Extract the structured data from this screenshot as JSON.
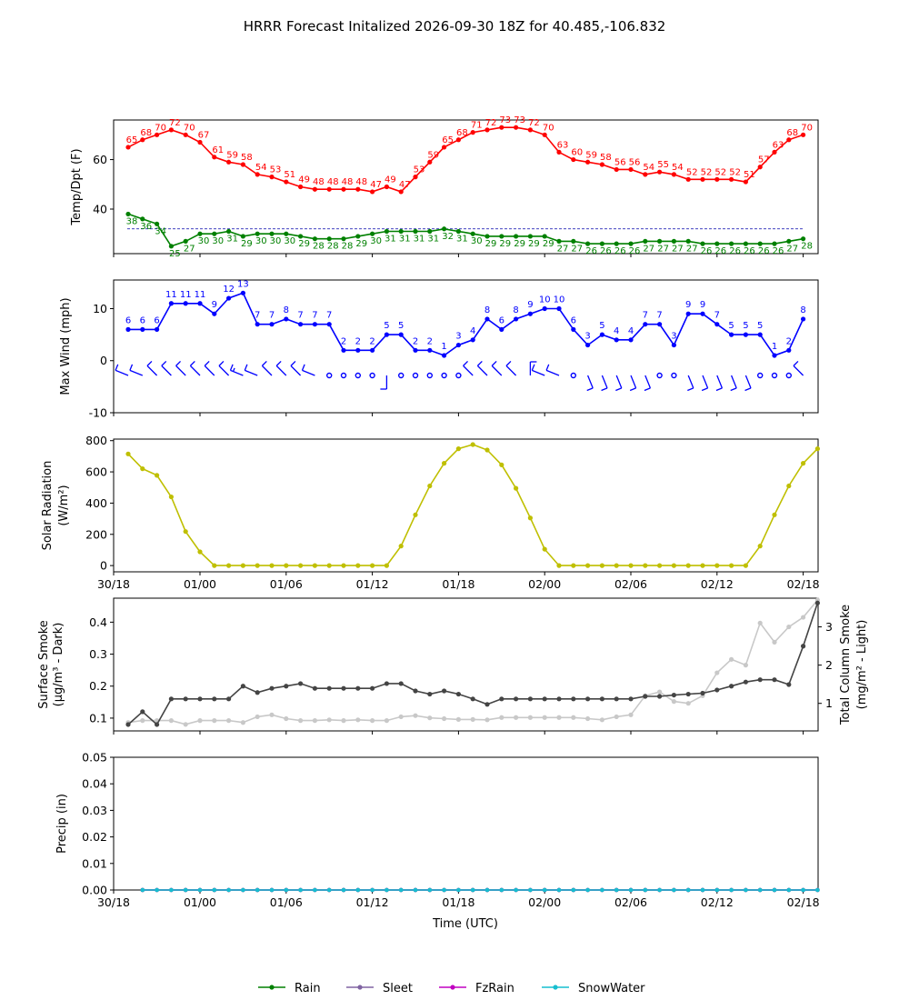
{
  "title": "HRRR Forecast Initalized 2026-09-30 18Z for 40.485,-106.832",
  "x_tick_labels": [
    "30/18",
    "01/00",
    "01/06",
    "01/12",
    "01/18",
    "02/00",
    "02/06",
    "02/12",
    "02/18"
  ],
  "x_axis_label": "Time (UTC)",
  "chart_data": [
    {
      "type": "line",
      "panel": "temperature",
      "ylabel": "Temp/Dpt (F)",
      "ylim": [
        22,
        76
      ],
      "yticks": [
        40,
        60
      ],
      "x_start": "30/18",
      "x_step_hours": 1,
      "reference_line": 32,
      "series": [
        {
          "role": "temperature",
          "color": "#ff0000",
          "values": [
            65,
            68,
            70,
            72,
            70,
            67,
            61,
            59,
            58,
            54,
            53,
            51,
            49,
            48,
            48,
            48,
            48,
            47,
            49,
            47,
            53,
            59,
            65,
            68,
            71,
            72,
            73,
            73,
            72,
            70,
            63,
            60,
            59,
            58,
            56,
            56,
            54,
            55,
            54,
            52,
            52,
            52,
            52,
            51,
            57,
            63,
            68,
            70
          ]
        },
        {
          "role": "dewpoint",
          "color": "#008000",
          "values": [
            38,
            36,
            34,
            25,
            27,
            30,
            30,
            31,
            29,
            30,
            30,
            30,
            29,
            28,
            28,
            28,
            29,
            30,
            31,
            31,
            31,
            31,
            32,
            31,
            30,
            29,
            29,
            29,
            29,
            29,
            27,
            27,
            26,
            26,
            26,
            26,
            27,
            27,
            27,
            27,
            26,
            26,
            26,
            26,
            26,
            26,
            27,
            28
          ]
        }
      ]
    },
    {
      "type": "line",
      "panel": "wind",
      "ylabel": "Max Wind (mph)",
      "ylim": [
        -10,
        15.5
      ],
      "yticks": [
        -10,
        0,
        10
      ],
      "color": "#0000ff",
      "values": [
        6,
        6,
        6,
        11,
        11,
        11,
        9,
        12,
        13,
        7,
        7,
        8,
        7,
        7,
        7,
        2,
        2,
        2,
        5,
        5,
        2,
        2,
        1,
        3,
        4,
        8,
        6,
        8,
        9,
        10,
        10,
        6,
        3,
        5,
        4,
        4,
        7,
        7,
        3,
        9,
        9,
        7,
        5,
        5,
        5,
        1,
        2,
        8
      ],
      "barb_directions": [
        "WNW",
        "WNW",
        "NW",
        "NW",
        "NW",
        "NW",
        "NW",
        "NW",
        "WNW",
        "WNW",
        "NW",
        "NW",
        "NW",
        "WNW",
        "calm",
        "calm",
        "calm",
        "calm",
        "S",
        "calm",
        "calm",
        "calm",
        "calm",
        "calm",
        "NW",
        "NW",
        "NW",
        "NW",
        "N",
        "WNW",
        "WNW",
        "calm",
        "SSE",
        "SSE",
        "SSE",
        "SSE",
        "SSE",
        "calm",
        "calm",
        "SSE",
        "SSE",
        "SSE",
        "SSE",
        "SSE",
        "calm",
        "calm",
        "calm",
        "NW"
      ]
    },
    {
      "type": "line",
      "panel": "solar",
      "ylabel": "Solar Radiation\n(W/m²)",
      "ylim": [
        -40,
        810
      ],
      "yticks": [
        0,
        200,
        400,
        600,
        800
      ],
      "color": "#bfbf00",
      "values": [
        715,
        620,
        578,
        440,
        218,
        88,
        0,
        0,
        0,
        0,
        0,
        0,
        0,
        0,
        0,
        0,
        0,
        0,
        0,
        125,
        325,
        510,
        655,
        748,
        775,
        740,
        645,
        495,
        305,
        105,
        0,
        0,
        0,
        0,
        0,
        0,
        0,
        0,
        0,
        0,
        0,
        0,
        0,
        0,
        125,
        325,
        510,
        655,
        748
      ]
    },
    {
      "type": "line",
      "panel": "smoke",
      "ylabel": "Surface Smoke\n(µg/m³ - Dark)",
      "ylabel_right": "Total Column Smoke\n(mg/m² - Light)",
      "ylim": [
        0.06,
        0.475
      ],
      "yticks": [
        0.1,
        0.2,
        0.3,
        0.4
      ],
      "ylim_right": [
        0.28,
        3.75
      ],
      "yticks_right": [
        1,
        2,
        3
      ],
      "series": [
        {
          "role": "surface",
          "color": "#444444",
          "values": [
            0.08,
            0.12,
            0.08,
            0.16,
            0.16,
            0.16,
            0.16,
            0.16,
            0.2,
            0.18,
            0.193,
            0.2,
            0.208,
            0.193,
            0.193,
            0.193,
            0.193,
            0.193,
            0.208,
            0.208,
            0.185,
            0.175,
            0.185,
            0.175,
            0.16,
            0.143,
            0.16,
            0.16,
            0.16,
            0.16,
            0.16,
            0.16,
            0.16,
            0.16,
            0.16,
            0.16,
            0.168,
            0.168,
            0.172,
            0.175,
            0.178,
            0.188,
            0.2,
            0.213,
            0.22,
            0.22,
            0.205,
            0.325,
            0.46
          ]
        },
        {
          "role": "column",
          "color": "#c8c8c8",
          "values": [
            0.5,
            0.55,
            0.55,
            0.55,
            0.45,
            0.55,
            0.55,
            0.55,
            0.5,
            0.65,
            0.7,
            0.6,
            0.55,
            0.55,
            0.57,
            0.55,
            0.57,
            0.55,
            0.55,
            0.65,
            0.68,
            0.62,
            0.6,
            0.58,
            0.58,
            0.57,
            0.63,
            0.63,
            0.63,
            0.63,
            0.63,
            0.63,
            0.6,
            0.57,
            0.65,
            0.7,
            1.2,
            1.3,
            1.05,
            1.0,
            1.2,
            1.8,
            2.15,
            2.0,
            3.1,
            2.6,
            3.0,
            3.25,
            3.7
          ]
        }
      ]
    },
    {
      "type": "line",
      "panel": "precip",
      "ylabel": "Precip (in)",
      "ylim": [
        0,
        0.05
      ],
      "yticks": [
        0.0,
        0.01,
        0.02,
        0.03,
        0.04,
        0.05
      ],
      "series": [
        {
          "name": "Rain",
          "color": "#008000",
          "values": [
            0,
            0,
            0,
            0,
            0,
            0,
            0,
            0,
            0,
            0,
            0,
            0,
            0,
            0,
            0,
            0,
            0,
            0,
            0,
            0,
            0,
            0,
            0,
            0,
            0,
            0,
            0,
            0,
            0,
            0,
            0,
            0,
            0,
            0,
            0,
            0,
            0,
            0,
            0,
            0,
            0,
            0,
            0,
            0,
            0,
            0,
            0,
            0
          ]
        },
        {
          "name": "Sleet",
          "color": "#8064a2",
          "values": [
            0,
            0,
            0,
            0,
            0,
            0,
            0,
            0,
            0,
            0,
            0,
            0,
            0,
            0,
            0,
            0,
            0,
            0,
            0,
            0,
            0,
            0,
            0,
            0,
            0,
            0,
            0,
            0,
            0,
            0,
            0,
            0,
            0,
            0,
            0,
            0,
            0,
            0,
            0,
            0,
            0,
            0,
            0,
            0,
            0,
            0,
            0,
            0
          ]
        },
        {
          "name": "FzRain",
          "color": "#c000c0",
          "values": [
            0,
            0,
            0,
            0,
            0,
            0,
            0,
            0,
            0,
            0,
            0,
            0,
            0,
            0,
            0,
            0,
            0,
            0,
            0,
            0,
            0,
            0,
            0,
            0,
            0,
            0,
            0,
            0,
            0,
            0,
            0,
            0,
            0,
            0,
            0,
            0,
            0,
            0,
            0,
            0,
            0,
            0,
            0,
            0,
            0,
            0,
            0,
            0
          ]
        },
        {
          "name": "SnowWater",
          "color": "#17becf",
          "values": [
            0,
            0,
            0,
            0,
            0,
            0,
            0,
            0,
            0,
            0,
            0,
            0,
            0,
            0,
            0,
            0,
            0,
            0,
            0,
            0,
            0,
            0,
            0,
            0,
            0,
            0,
            0,
            0,
            0,
            0,
            0,
            0,
            0,
            0,
            0,
            0,
            0,
            0,
            0,
            0,
            0,
            0,
            0,
            0,
            0,
            0,
            0,
            0
          ]
        }
      ]
    }
  ]
}
